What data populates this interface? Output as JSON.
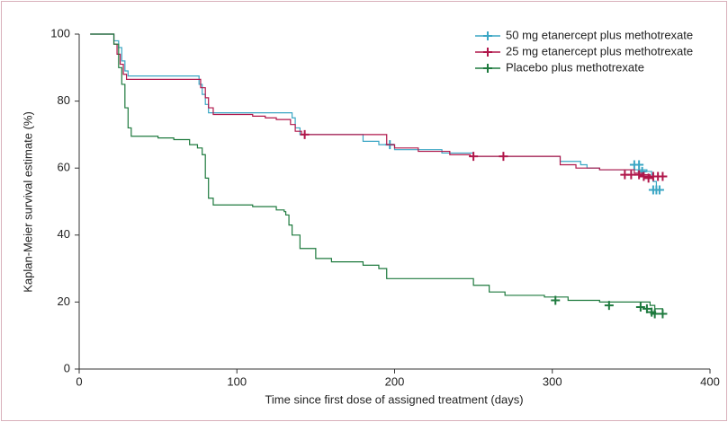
{
  "chart_data": {
    "type": "line",
    "step": true,
    "xlabel": "Time since first dose of assigned treatment (days)",
    "ylabel": "Kaplan-Meier survival estimate (%)",
    "xlim": [
      0,
      400
    ],
    "xticks": [
      0,
      100,
      200,
      300,
      400
    ],
    "ylim": [
      0,
      100
    ],
    "yticks": [
      0,
      20,
      40,
      60,
      80,
      100
    ],
    "legend": "upper right",
    "series": [
      {
        "name": "50 mg etanercept plus methotrexate",
        "color": "#3aa6c4",
        "x": [
          7,
          22,
          25,
          27,
          29,
          31,
          76,
          78,
          80,
          82,
          85,
          135,
          137,
          140,
          180,
          190,
          200,
          230,
          250,
          305,
          318,
          322,
          330,
          360,
          363,
          364,
          366,
          370
        ],
        "values": [
          100,
          98,
          96,
          92,
          89,
          87.5,
          85,
          82,
          79,
          76.5,
          76.5,
          75,
          72,
          70,
          68,
          67,
          65.5,
          64.5,
          63.5,
          62,
          61,
          60,
          59.5,
          59,
          58,
          56,
          53.5,
          53.5
        ],
        "censor_x": [
          197,
          352,
          355,
          357,
          364,
          366,
          368
        ],
        "censor_values": [
          67,
          61,
          61,
          59,
          53.5,
          53.5,
          53.5
        ]
      },
      {
        "name": "25 mg etanercept plus methotrexate",
        "color": "#b0164a",
        "x": [
          7,
          22,
          24,
          26,
          28,
          30,
          77,
          80,
          82,
          85,
          110,
          118,
          125,
          134,
          137,
          141,
          195,
          200,
          215,
          235,
          248,
          305,
          315,
          330,
          352,
          358,
          362,
          370
        ],
        "values": [
          100,
          97,
          94,
          91,
          88,
          86.5,
          84,
          81,
          78,
          76,
          75.5,
          75,
          74.5,
          73,
          71,
          70,
          67,
          66,
          65,
          64,
          63.5,
          61,
          60,
          59.5,
          58.5,
          58,
          57.5,
          57.5
        ],
        "censor_x": [
          143,
          250,
          269,
          346,
          350,
          355,
          358,
          361,
          364,
          367,
          370
        ],
        "censor_values": [
          70,
          63.5,
          63.5,
          58,
          58,
          58,
          57.5,
          57,
          57.5,
          57.5,
          57.5
        ]
      },
      {
        "name": "Placebo plus methotrexate",
        "color": "#1e7a3e",
        "x": [
          7,
          22,
          25,
          27,
          29,
          31,
          33,
          50,
          60,
          70,
          75,
          78,
          80,
          82,
          85,
          110,
          125,
          130,
          131,
          133,
          135,
          140,
          150,
          160,
          180,
          190,
          195,
          250,
          260,
          270,
          295,
          310,
          330,
          362,
          365,
          370
        ],
        "values": [
          100,
          97,
          90,
          85,
          78,
          72,
          69.5,
          69,
          68.5,
          67,
          66,
          64,
          57,
          51,
          49,
          48.5,
          47.5,
          47,
          46,
          43,
          40,
          36,
          33,
          32,
          31,
          30,
          27,
          25,
          23,
          22,
          21.5,
          20.5,
          20,
          19,
          18,
          17
        ],
        "censor_x": [
          302,
          336,
          356,
          360,
          363,
          365,
          370
        ],
        "censor_values": [
          20.5,
          19,
          18.5,
          18,
          17,
          16.5,
          16.5
        ]
      }
    ]
  }
}
